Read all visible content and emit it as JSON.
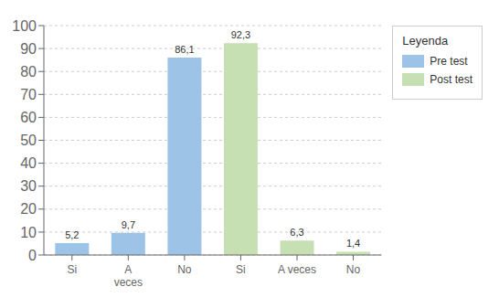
{
  "chart_data": {
    "type": "bar",
    "categories": [
      "Si",
      "A\nveces",
      "No",
      "Si",
      "A veces",
      "No"
    ],
    "series": [
      {
        "name": "Pre test",
        "color": "#9dc3e6",
        "values": [
          5.2,
          9.7,
          86.1,
          null,
          null,
          null
        ],
        "value_labels": [
          "5,2",
          "9,7",
          "86,1",
          null,
          null,
          null
        ]
      },
      {
        "name": "Post test",
        "color": "#c6e0b4",
        "values": [
          null,
          null,
          null,
          92.3,
          6.3,
          1.4
        ],
        "value_labels": [
          null,
          null,
          null,
          "92,3",
          "6,3",
          "1,4"
        ]
      }
    ],
    "legend_title": "Leyenda",
    "legend": "right",
    "ylim": [
      0,
      100
    ],
    "yticks": [
      0,
      10,
      20,
      30,
      40,
      50,
      60,
      70,
      80,
      90,
      100
    ],
    "grid": true,
    "data_labels": true
  }
}
